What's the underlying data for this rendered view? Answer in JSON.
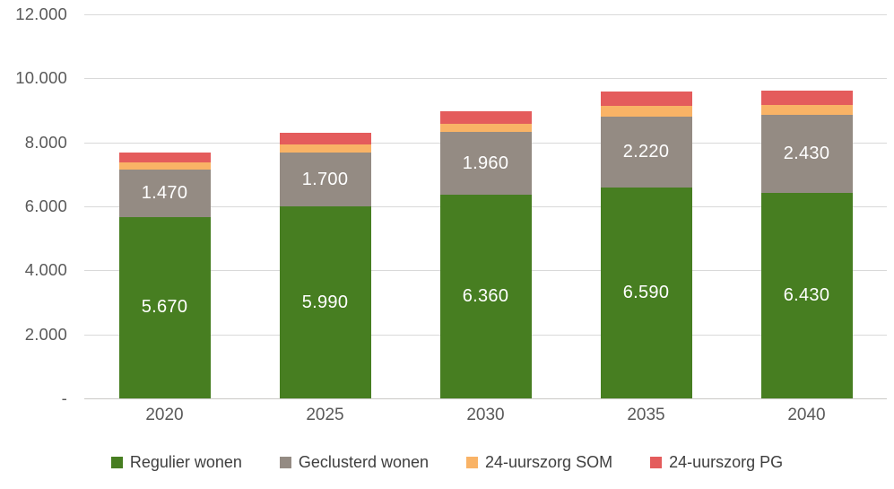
{
  "chart_data": {
    "type": "bar",
    "stacked": true,
    "title": "",
    "xlabel": "",
    "ylabel": "",
    "categories": [
      "2020",
      "2025",
      "2030",
      "2035",
      "2040"
    ],
    "series": [
      {
        "name": "Regulier wonen",
        "color": "#477e21",
        "values": [
          5670,
          5990,
          6360,
          6590,
          6430
        ],
        "labels": [
          "5.670",
          "5.990",
          "6.360",
          "6.590",
          "6.430"
        ]
      },
      {
        "name": "Geclusterd wonen",
        "color": "#948b83",
        "values": [
          1470,
          1700,
          1960,
          2220,
          2430
        ],
        "labels": [
          "1.470",
          "1.700",
          "1.960",
          "2.220",
          "2.430"
        ]
      },
      {
        "name": "24-uurszorg SOM",
        "color": "#f9b366",
        "values": [
          250,
          260,
          270,
          330,
          320
        ],
        "labels": [
          "",
          "",
          "",
          "",
          ""
        ]
      },
      {
        "name": "24-uurszorg PG",
        "color": "#e45c5c",
        "values": [
          300,
          350,
          380,
          440,
          450
        ],
        "labels": [
          "",
          "",
          "",
          "",
          ""
        ]
      }
    ],
    "y_axis": {
      "min": 0,
      "max": 12000,
      "tick_interval": 2000,
      "tick_labels_top_to_bottom": [
        "12.000",
        "10.000",
        "8.000",
        "6.000",
        "4.000",
        "2.000",
        "-"
      ]
    },
    "grid": true,
    "legend_position": "bottom",
    "bar_label_color": "#ffffff",
    "grid_color": "#d9d9d9",
    "axis_line_color": "#cbc9c7",
    "tick_text_color": "#595959",
    "legend_text_color": "#3f3f3f",
    "background_color": "#ffffff"
  }
}
